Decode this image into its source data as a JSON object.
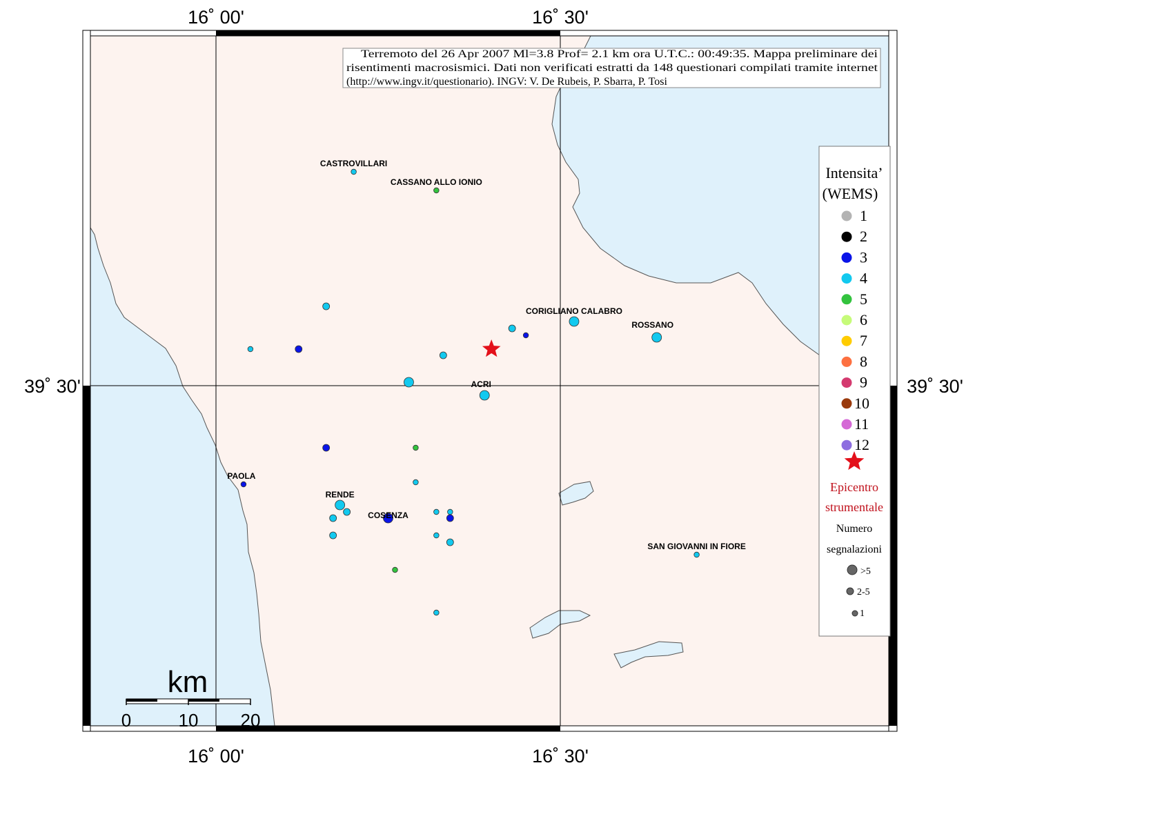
{
  "title": "Terremoto del 26 Apr 2007 Ml=3.8 Prof= 2.1 km ora U.T.C.: 00:49:35.  Mappa preliminare dei risentimenti macrosismici.   Dati non verificati estratti da 148 questionari compilati tramite internet (http://www.ingv.it/questionario).   INGV: V.  De Rubeis, P.  Sbarra, P.  Tosi",
  "info_lines": [
    "Terremoto del 26 Apr 2007 Ml=3.8 Prof= 2.1 km ora U.T.C.: 00:49:35.  Mappa preliminare dei",
    "risentimenti macrosismici.   Dati non verificati estratti da 148 questionari compilati tramite internet",
    "(http://www.ingv.it/questionario).   INGV: V.  De Rubeis, P.  Sbarra, P.  Tosi"
  ],
  "graticule": {
    "lon_labels": [
      "16˚ 00'",
      "16˚ 30'"
    ],
    "lat_labels": [
      "39˚ 30'"
    ]
  },
  "colors": {
    "land": "#fdf3ef",
    "sea": "#dff1fb",
    "epicenter": "#e3101a"
  },
  "cities": [
    {
      "name": "CASTROVILLARI",
      "lon": 16.2,
      "lat": 39.81
    },
    {
      "name": "CASSANO ALLO IONIO",
      "lon": 16.32,
      "lat": 39.783
    },
    {
      "name": "CORIGLIANO CALABRO",
      "lon": 16.52,
      "lat": 39.596
    },
    {
      "name": "ROSSANO",
      "lon": 16.634,
      "lat": 39.576
    },
    {
      "name": "ACRI",
      "lon": 16.385,
      "lat": 39.49
    },
    {
      "name": "PAOLA",
      "lon": 16.037,
      "lat": 39.357
    },
    {
      "name": "RENDE",
      "lon": 16.18,
      "lat": 39.33
    },
    {
      "name": "COSENZA",
      "lon": 16.25,
      "lat": 39.3
    },
    {
      "name": "SAN GIOVANNI IN FIORE",
      "lon": 16.698,
      "lat": 39.255
    }
  ],
  "observations": [
    {
      "lon": 16.2,
      "lat": 39.81,
      "intensity": 4,
      "count": "1"
    },
    {
      "lon": 16.32,
      "lat": 39.783,
      "intensity": 5,
      "count": "1"
    },
    {
      "lon": 16.16,
      "lat": 39.615,
      "intensity": 4,
      "count": "2-5"
    },
    {
      "lon": 16.05,
      "lat": 39.553,
      "intensity": 4,
      "count": "1"
    },
    {
      "lon": 16.12,
      "lat": 39.553,
      "intensity": 3,
      "count": "2-5"
    },
    {
      "lon": 16.28,
      "lat": 39.505,
      "intensity": 4,
      "count": ">5"
    },
    {
      "lon": 16.33,
      "lat": 39.544,
      "intensity": 4,
      "count": "2-5"
    },
    {
      "lon": 16.43,
      "lat": 39.583,
      "intensity": 4,
      "count": "2-5"
    },
    {
      "lon": 16.45,
      "lat": 39.573,
      "intensity": 3,
      "count": "1"
    },
    {
      "lon": 16.52,
      "lat": 39.593,
      "intensity": 4,
      "count": ">5"
    },
    {
      "lon": 16.64,
      "lat": 39.57,
      "intensity": 4,
      "count": ">5"
    },
    {
      "lon": 16.39,
      "lat": 39.486,
      "intensity": 4,
      "count": ">5"
    },
    {
      "lon": 16.16,
      "lat": 39.41,
      "intensity": 3,
      "count": "2-5"
    },
    {
      "lon": 16.29,
      "lat": 39.41,
      "intensity": 5,
      "count": "1"
    },
    {
      "lon": 16.04,
      "lat": 39.357,
      "intensity": 3,
      "count": "1"
    },
    {
      "lon": 16.29,
      "lat": 39.36,
      "intensity": 4,
      "count": "1"
    },
    {
      "lon": 16.18,
      "lat": 39.327,
      "intensity": 4,
      "count": ">5"
    },
    {
      "lon": 16.19,
      "lat": 39.317,
      "intensity": 4,
      "count": "2-5"
    },
    {
      "lon": 16.17,
      "lat": 39.308,
      "intensity": 4,
      "count": "2-5"
    },
    {
      "lon": 16.25,
      "lat": 39.308,
      "intensity": 3,
      "count": ">5"
    },
    {
      "lon": 16.32,
      "lat": 39.317,
      "intensity": 4,
      "count": "1"
    },
    {
      "lon": 16.34,
      "lat": 39.317,
      "intensity": 4,
      "count": "1"
    },
    {
      "lon": 16.34,
      "lat": 39.308,
      "intensity": 3,
      "count": "2-5"
    },
    {
      "lon": 16.17,
      "lat": 39.283,
      "intensity": 4,
      "count": "2-5"
    },
    {
      "lon": 16.32,
      "lat": 39.283,
      "intensity": 4,
      "count": "1"
    },
    {
      "lon": 16.34,
      "lat": 39.273,
      "intensity": 4,
      "count": "2-5"
    },
    {
      "lon": 16.26,
      "lat": 39.233,
      "intensity": 5,
      "count": "1"
    },
    {
      "lon": 16.32,
      "lat": 39.171,
      "intensity": 4,
      "count": "1"
    },
    {
      "lon": 16.698,
      "lat": 39.255,
      "intensity": 4,
      "count": "1"
    }
  ],
  "epicenter": {
    "lon": 16.4,
    "lat": 39.553
  },
  "legend": {
    "title_line1": "Intensita’",
    "title_line2": "(WEMS)",
    "intensity_classes": [
      {
        "label": "1",
        "color": "#b3b3b3"
      },
      {
        "label": "2",
        "color": "#000000"
      },
      {
        "label": "3",
        "color": "#0a14e8"
      },
      {
        "label": "4",
        "color": "#12c9ef"
      },
      {
        "label": "5",
        "color": "#33c33e"
      },
      {
        "label": "6",
        "color": "#c6fb79"
      },
      {
        "label": "7",
        "color": "#ffcc00"
      },
      {
        "label": "8",
        "color": "#fd7040"
      },
      {
        "label": "9",
        "color": "#d43a6f"
      },
      {
        "label": "10",
        "color": "#9a3a0c"
      },
      {
        "label": "11",
        "color": "#d569d6"
      },
      {
        "label": "12",
        "color": "#8d6ee0"
      }
    ],
    "epicenter_line1": "Epicentro",
    "epicenter_line2": "strumentale",
    "count_title_line1": "Numero",
    "count_title_line2": "segnalazioni",
    "count_classes": [
      ">5",
      "2-5",
      "1"
    ]
  },
  "scale_bar": {
    "unit": "km",
    "ticks": [
      "0",
      "10",
      "20"
    ]
  }
}
